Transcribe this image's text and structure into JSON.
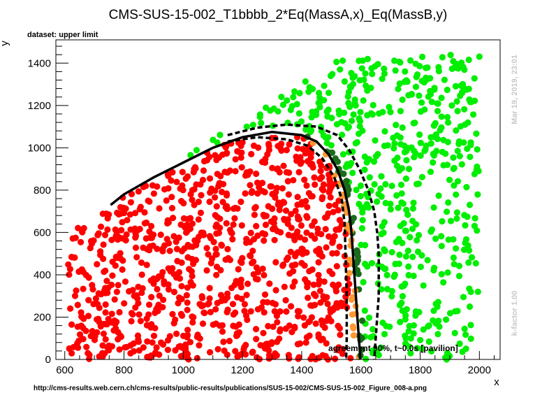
{
  "chart_data": {
    "type": "scatter",
    "title": "CMS-SUS-15-002_T1bbbb_2*Eq(MassA,x)_Eq(MassB,y)",
    "subtitle": "dataset: upper limit",
    "xlabel": "x",
    "ylabel": "y",
    "xlim": [
      570,
      2070
    ],
    "ylim": [
      0,
      1510
    ],
    "x_ticks": [
      "600",
      "800",
      "1000",
      "1200",
      "1400",
      "1600",
      "1800",
      "2000"
    ],
    "y_ticks": [
      "0",
      "200",
      "400",
      "600",
      "800",
      "1000",
      "1200",
      "1400"
    ],
    "annotation": "agreement 90%, t~0.0s [pavilion]",
    "timestamp": "Mar 19, 2019, 23:01",
    "kfactor": "k-factor 1.00",
    "source_url": "http://cms-results.web.cern.ch/cms-results/public-results/publications/SUS-15-002/CMS-SUS-15-002_Figure_008-a.png",
    "colors": {
      "excluded": "#ff0000",
      "allowed": "#00ee00",
      "border_excluded": "#ff9933",
      "border_allowed": "#1a6b1a",
      "contour": "#000000"
    },
    "contours": {
      "observed": [
        [
          755,
          730
        ],
        [
          800,
          780
        ],
        [
          900,
          860
        ],
        [
          1000,
          930
        ],
        [
          1100,
          1000
        ],
        [
          1200,
          1050
        ],
        [
          1300,
          1075
        ],
        [
          1400,
          1060
        ],
        [
          1450,
          1030
        ],
        [
          1490,
          970
        ],
        [
          1520,
          900
        ],
        [
          1545,
          800
        ],
        [
          1560,
          700
        ],
        [
          1568,
          600
        ],
        [
          1573,
          500
        ],
        [
          1578,
          400
        ],
        [
          1583,
          300
        ],
        [
          1588,
          200
        ],
        [
          1593,
          100
        ],
        [
          1598,
          0
        ]
      ],
      "expected_plus": [
        [
          1150,
          1060
        ],
        [
          1250,
          1095
        ],
        [
          1350,
          1110
        ],
        [
          1450,
          1100
        ],
        [
          1520,
          1060
        ],
        [
          1560,
          990
        ],
        [
          1595,
          900
        ],
        [
          1625,
          800
        ],
        [
          1645,
          700
        ],
        [
          1655,
          600
        ],
        [
          1660,
          500
        ],
        [
          1660,
          400
        ],
        [
          1660,
          300
        ],
        [
          1655,
          200
        ],
        [
          1650,
          100
        ],
        [
          1645,
          0
        ]
      ],
      "expected_minus": [
        [
          1150,
          1030
        ],
        [
          1250,
          1050
        ],
        [
          1350,
          1040
        ],
        [
          1420,
          1010
        ],
        [
          1470,
          950
        ],
        [
          1510,
          860
        ],
        [
          1535,
          760
        ],
        [
          1545,
          640
        ],
        [
          1548,
          500
        ],
        [
          1550,
          400
        ],
        [
          1552,
          300
        ],
        [
          1552,
          200
        ],
        [
          1552,
          100
        ],
        [
          1550,
          0
        ]
      ]
    },
    "sampling": {
      "x_range": [
        610,
        2000
      ],
      "y_range": [
        0,
        1440
      ],
      "excluded_count": 950,
      "allowed_count": 520,
      "border_count": 70
    }
  }
}
